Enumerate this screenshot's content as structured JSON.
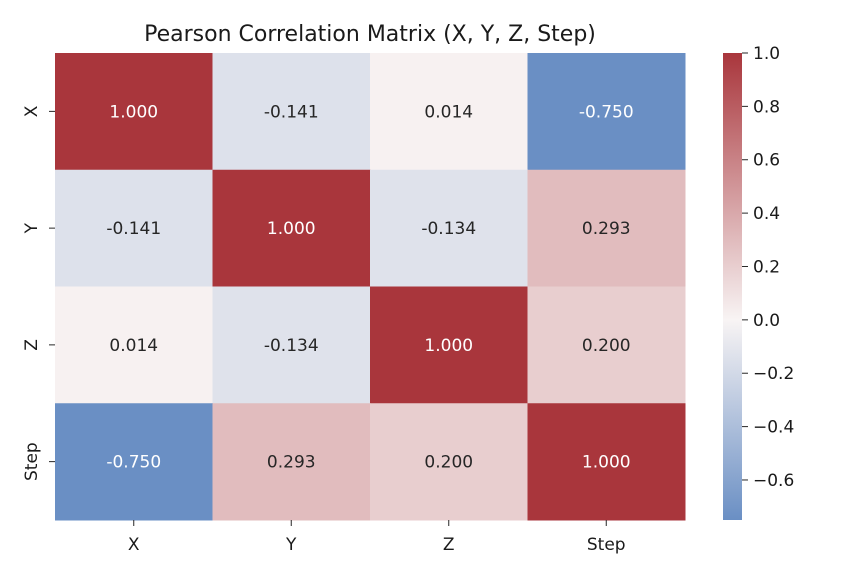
{
  "chart_data": {
    "type": "heatmap",
    "title": "Pearson Correlation Matrix (X, Y, Z, Step)",
    "xlabel": "",
    "ylabel": "",
    "rows": [
      "X",
      "Y",
      "Z",
      "Step"
    ],
    "cols": [
      "X",
      "Y",
      "Z",
      "Step"
    ],
    "values": [
      [
        1.0,
        -0.141,
        0.014,
        -0.75
      ],
      [
        -0.141,
        1.0,
        -0.134,
        0.293
      ],
      [
        0.014,
        -0.134,
        1.0,
        0.2
      ],
      [
        -0.75,
        0.293,
        0.2,
        1.0
      ]
    ],
    "value_labels": [
      [
        "1.000",
        "-0.141",
        "0.014",
        "-0.750"
      ],
      [
        "-0.141",
        "1.000",
        "-0.134",
        "0.293"
      ],
      [
        "0.014",
        "-0.134",
        "1.000",
        "0.200"
      ],
      [
        "-0.750",
        "0.293",
        "0.200",
        "1.000"
      ]
    ],
    "colorbar": {
      "min": -0.75,
      "max": 1.0,
      "ticks": [
        1.0,
        0.8,
        0.6,
        0.4,
        0.2,
        0.0,
        -0.2,
        -0.4,
        -0.6
      ],
      "tick_labels": [
        "1.0",
        "0.8",
        "0.6",
        "0.4",
        "0.2",
        "0.0",
        "−0.2",
        "−0.4",
        "−0.6"
      ],
      "colormap": "vlag",
      "low_color": "#6a8fc4",
      "mid_color": "#f8f4f4",
      "high_color": "#a9363c"
    }
  }
}
